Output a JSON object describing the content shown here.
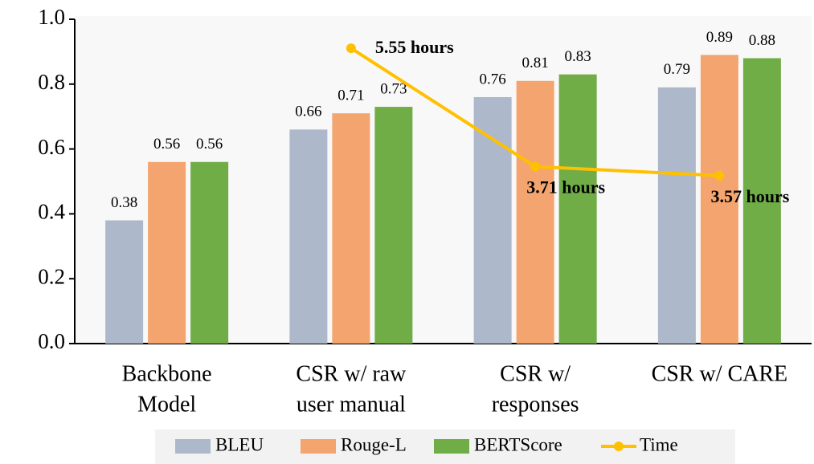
{
  "chart_data": {
    "type": "bar",
    "categories": [
      [
        "Backbone",
        "Model"
      ],
      [
        "CSR w/ raw",
        "user manual"
      ],
      [
        "CSR w/",
        "responses"
      ],
      [
        "CSR w/ CARE"
      ]
    ],
    "series": [
      {
        "name": "BLEU",
        "color": "#adb9ca",
        "values": [
          0.38,
          0.66,
          0.76,
          0.79
        ]
      },
      {
        "name": "Rouge-L",
        "color": "#f4a46e",
        "values": [
          0.56,
          0.71,
          0.81,
          0.89
        ]
      },
      {
        "name": "BERTScore",
        "color": "#70ad47",
        "values": [
          0.56,
          0.73,
          0.83,
          0.88
        ]
      },
      {
        "name": "Time",
        "type": "line",
        "axis": "y2",
        "color": "#ffc000",
        "values": [
          null,
          5.55,
          3.71,
          3.57
        ],
        "value_labels": [
          null,
          "5.55 hours",
          "3.71 hours",
          "3.57 hours"
        ]
      }
    ],
    "ylim": [
      0,
      1.0
    ],
    "yticks": [
      {
        "value": 0,
        "label": "0.0"
      },
      0.2,
      0.4,
      0.6,
      0.8,
      {
        "value": 1.0,
        "label": "1.0"
      }
    ],
    "y2lim": [
      0.96,
      6.0
    ],
    "legend": "bottom"
  }
}
